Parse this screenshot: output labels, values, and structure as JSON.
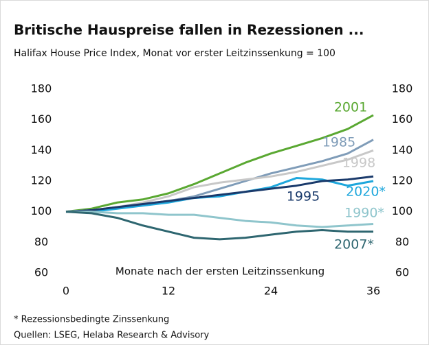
{
  "chart_data": {
    "type": "line",
    "title": "Britische Hauspreise fallen in Rezessionen ...",
    "subtitle": "Halifax House Price Index, Monat vor erster Leitzinssenkung = 100",
    "x_label": "Monate nach der ersten Leitzinssenkung",
    "x": [
      0,
      3,
      6,
      9,
      12,
      15,
      18,
      21,
      24,
      27,
      30,
      33,
      36
    ],
    "series": [
      {
        "name": "2001",
        "color": "#5aa832",
        "values": [
          100,
          102,
          106,
          108,
          112,
          118,
          125,
          132,
          138,
          143,
          148,
          154,
          163
        ]
      },
      {
        "name": "1985",
        "color": "#7f9cb8",
        "values": [
          100,
          101,
          103,
          105,
          107,
          110,
          115,
          120,
          125,
          129,
          133,
          138,
          147
        ]
      },
      {
        "name": "1998",
        "color": "#c8c8c8",
        "values": [
          100,
          101,
          103,
          106,
          110,
          116,
          119,
          121,
          123,
          126,
          130,
          134,
          140
        ]
      },
      {
        "name": "2020*",
        "color": "#1ea7dc",
        "values": [
          100,
          100,
          102,
          104,
          106,
          109,
          110,
          113,
          116,
          122,
          121,
          117,
          120
        ]
      },
      {
        "name": "1995",
        "color": "#1a3a6b",
        "values": [
          100,
          101,
          103,
          105,
          107,
          109,
          111,
          113,
          115,
          117,
          120,
          121,
          123
        ]
      },
      {
        "name": "1990*",
        "color": "#8fc5cc",
        "values": [
          100,
          100,
          99,
          99,
          98,
          98,
          96,
          94,
          93,
          91,
          90,
          91,
          92
        ]
      },
      {
        "name": "2007*",
        "color": "#2e6670",
        "values": [
          100,
          99,
          96,
          91,
          87,
          83,
          82,
          83,
          85,
          87,
          88,
          87,
          87
        ]
      }
    ],
    "xlim": [
      0,
      36
    ],
    "xticks": [
      0,
      12,
      24,
      36
    ],
    "ylim": [
      60,
      180
    ],
    "yticks": [
      60,
      80,
      100,
      120,
      140,
      160,
      180
    ],
    "grid": false,
    "footnotes": [
      "* Rezessionsbedingte Zinssenkung",
      "Quellen: LSEG, Helaba Research & Advisory"
    ]
  }
}
